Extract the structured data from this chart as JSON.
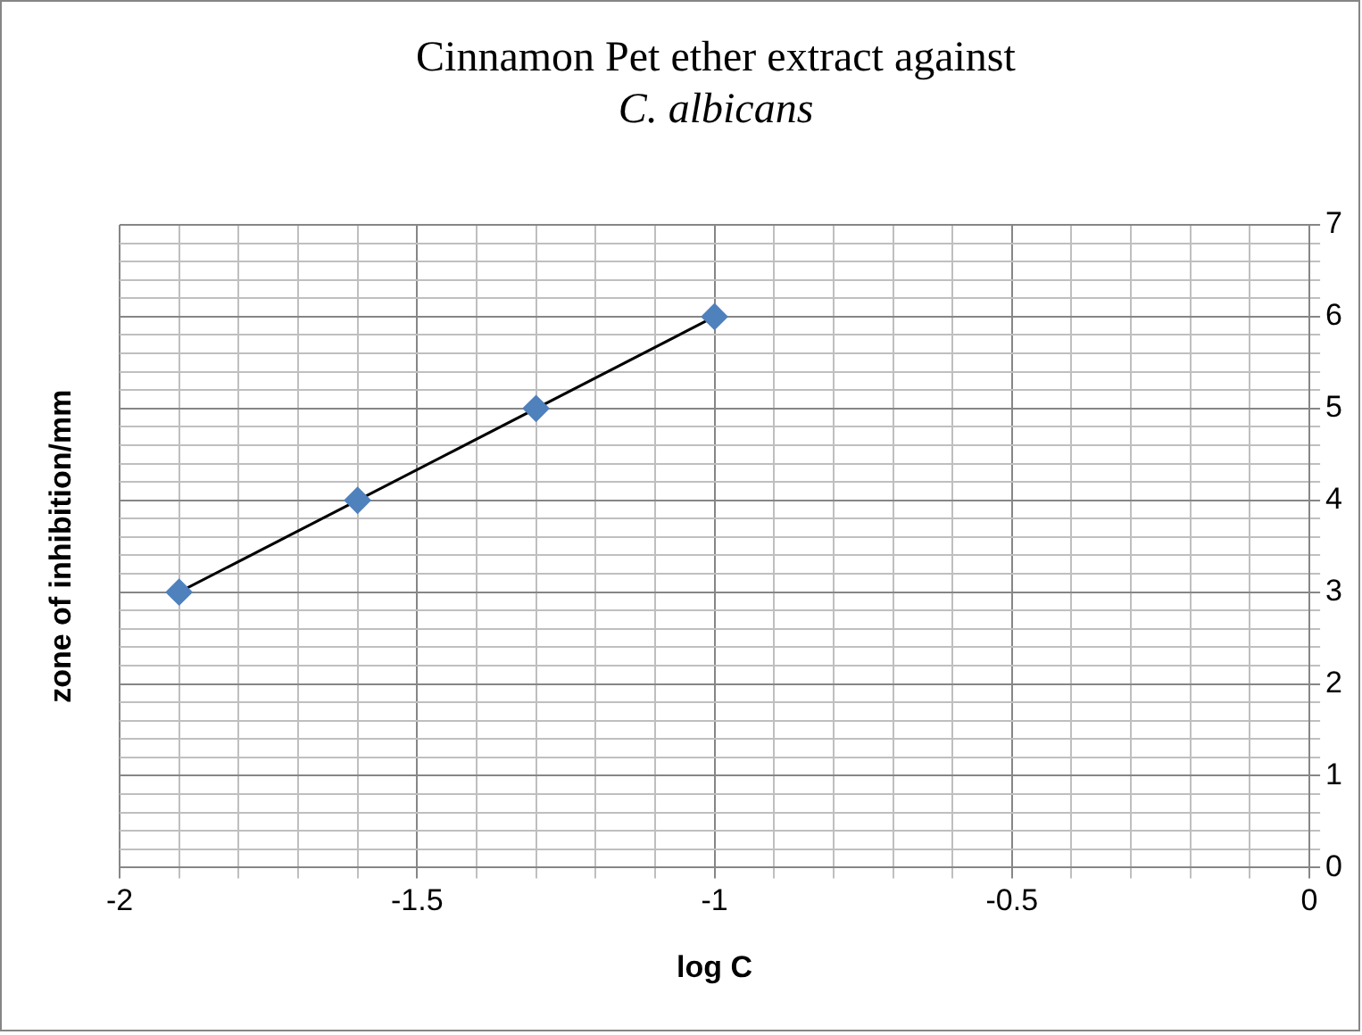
{
  "chart_data": {
    "type": "scatter",
    "title": "Cinnamon Pet ether extract against\nC. albicans",
    "xlabel": "log C",
    "ylabel": "zone of inhibition/mm",
    "x": [
      -1.9,
      -1.6,
      -1.3,
      -1
    ],
    "series": [
      {
        "type": "scatter",
        "color": "#4f81bd",
        "values": [
          3,
          4,
          5,
          6
        ],
        "marker": "diamond"
      },
      {
        "type": "line",
        "color": "#000000",
        "x": [
          -1.9,
          -1
        ],
        "values": [
          3,
          6
        ],
        "marker": "none"
      }
    ],
    "xlim": [
      -2,
      0
    ],
    "xticks": [
      -2,
      {
        "value": -1.9,
        "label": null
      },
      {
        "value": -1.8,
        "label": null
      },
      {
        "value": -1.7,
        "label": null
      },
      {
        "value": -1.6,
        "label": null
      },
      -1.5,
      {
        "value": -1.4,
        "label": null
      },
      {
        "value": -1.3,
        "label": null
      },
      {
        "value": -1.2,
        "label": null
      },
      {
        "value": -1.1,
        "label": null
      },
      -1,
      {
        "value": -0.9,
        "label": null
      },
      {
        "value": -0.8,
        "label": null
      },
      {
        "value": -0.7,
        "label": null
      },
      {
        "value": -0.6,
        "label": null
      },
      -0.5,
      {
        "value": -0.4,
        "label": null
      },
      {
        "value": -0.3,
        "label": null
      },
      {
        "value": -0.2,
        "label": null
      },
      {
        "value": -0.1,
        "label": null
      },
      0
    ],
    "ylim": [
      0,
      7
    ],
    "yticks": [
      0,
      {
        "value": 0.2,
        "label": null
      },
      {
        "value": 0.4,
        "label": null
      },
      {
        "value": 0.6,
        "label": null
      },
      {
        "value": 0.8,
        "label": null
      },
      1,
      {
        "value": 1.2,
        "label": null
      },
      {
        "value": 1.4,
        "label": null
      },
      {
        "value": 1.6,
        "label": null
      },
      {
        "value": 1.8,
        "label": null
      },
      2,
      {
        "value": 2.2,
        "label": null
      },
      {
        "value": 2.4,
        "label": null
      },
      {
        "value": 2.6,
        "label": null
      },
      {
        "value": 2.8,
        "label": null
      },
      3,
      {
        "value": 3.2,
        "label": null
      },
      {
        "value": 3.4,
        "label": null
      },
      {
        "value": 3.6,
        "label": null
      },
      {
        "value": 3.8,
        "label": null
      },
      4,
      {
        "value": 4.2,
        "label": null
      },
      {
        "value": 4.4,
        "label": null
      },
      {
        "value": 4.6,
        "label": null
      },
      {
        "value": 4.8,
        "label": null
      },
      5,
      {
        "value": 5.2,
        "label": null
      },
      {
        "value": 5.4,
        "label": null
      },
      {
        "value": 5.6,
        "label": null
      },
      {
        "value": 5.8,
        "label": null
      },
      6,
      {
        "value": 6.2,
        "label": null
      },
      {
        "value": 6.4,
        "label": null
      },
      {
        "value": 6.6,
        "label": null
      },
      {
        "value": 6.8,
        "label": null
      },
      7
    ],
    "grid": true,
    "legend": false
  }
}
